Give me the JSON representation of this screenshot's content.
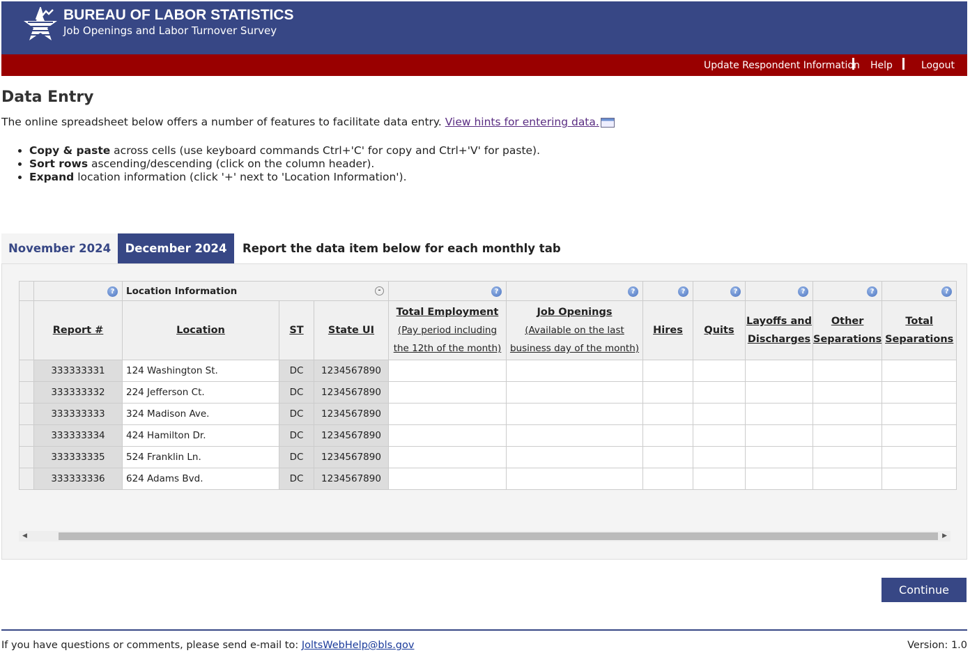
{
  "header": {
    "title": "BUREAU OF LABOR STATISTICS",
    "subtitle": "Job Openings and Labor Turnover Survey"
  },
  "nav": {
    "update": "Update Respondent Information",
    "help": "Help",
    "logout": "Logout"
  },
  "page": {
    "title": "Data Entry",
    "intro": "The online spreadsheet below offers a number of features to facilitate data entry. ",
    "hints_link": "View hints for entering data.",
    "bullets": [
      {
        "bold": "Copy & paste",
        "text": " across cells (use keyboard commands Ctrl+'C' for copy and Ctrl+'V' for paste)."
      },
      {
        "bold": "Sort rows",
        "text": " ascending/descending (click on the column header)."
      },
      {
        "bold": "Expand",
        "text": " location information (click '+' next to 'Location Information')."
      }
    ]
  },
  "tabs": [
    {
      "label": "November 2024",
      "active": false
    },
    {
      "label": "December 2024",
      "active": true
    }
  ],
  "tab_note": "Report the data item below for each monthly tab",
  "table": {
    "group": "Location Information",
    "headers": {
      "report": "Report #",
      "location": "Location",
      "st": "ST",
      "state_ui": "State UI",
      "total_emp": "Total Employment",
      "total_emp_sub1": "(Pay period including",
      "total_emp_sub2": "the 12th of the month)",
      "job_openings": "Job Openings",
      "jo_sub1": "(Available on the last",
      "jo_sub2": "business day of the month)",
      "hires": "Hires",
      "quits": "Quits",
      "layoffs1": "Layoffs and",
      "layoffs2": "Discharges",
      "other1": "Other",
      "other2": "Separations",
      "total1": "Total",
      "total2": "Separations"
    },
    "rows": [
      {
        "report": "333333331",
        "location": "124 Washington St.",
        "st": "DC",
        "state_ui": "1234567890"
      },
      {
        "report": "333333332",
        "location": "224 Jefferson Ct.",
        "st": "DC",
        "state_ui": "1234567890"
      },
      {
        "report": "333333333",
        "location": "324 Madison Ave.",
        "st": "DC",
        "state_ui": "1234567890"
      },
      {
        "report": "333333334",
        "location": "424 Hamilton Dr.",
        "st": "DC",
        "state_ui": "1234567890"
      },
      {
        "report": "333333335",
        "location": "524 Franklin Ln.",
        "st": "DC",
        "state_ui": "1234567890"
      },
      {
        "report": "333333336",
        "location": "624 Adams Bvd.",
        "st": "DC",
        "state_ui": "1234567890"
      }
    ]
  },
  "continue": "Continue",
  "footer": {
    "text": "If you have questions or comments, please send e-mail to: ",
    "email": "JoltsWebHelp@bls.gov",
    "version": "Version: 1.0"
  }
}
